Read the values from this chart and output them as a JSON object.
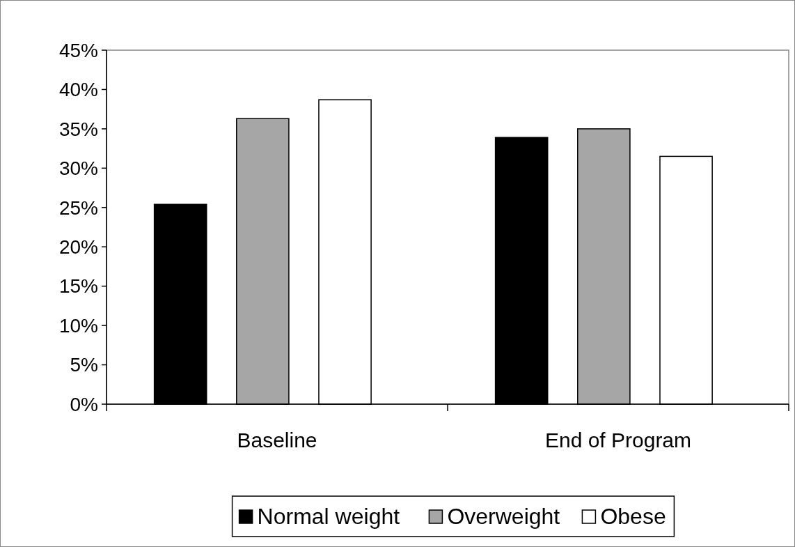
{
  "chart_data": {
    "type": "bar",
    "categories": [
      "Baseline",
      "End of Program"
    ],
    "series": [
      {
        "name": "Normal weight",
        "color": "#000000",
        "values": [
          25.4,
          33.9
        ]
      },
      {
        "name": "Overweight",
        "color": "#a6a6a6",
        "values": [
          36.3,
          35.0
        ]
      },
      {
        "name": "Obese",
        "color": "#ffffff",
        "values": [
          38.7,
          31.5
        ]
      }
    ],
    "ylim": [
      0,
      45
    ],
    "yticks": [
      {
        "value": 0,
        "label": "0%"
      },
      {
        "value": 5,
        "label": "5%"
      },
      {
        "value": 10,
        "label": "10%"
      },
      {
        "value": 15,
        "label": "15%"
      },
      {
        "value": 20,
        "label": "20%"
      },
      {
        "value": 25,
        "label": "25%"
      },
      {
        "value": 30,
        "label": "30%"
      },
      {
        "value": 35,
        "label": "35%"
      },
      {
        "value": 40,
        "label": "40%"
      },
      {
        "value": 45,
        "label": "45%"
      }
    ],
    "grid": false,
    "legend": "bottom"
  }
}
